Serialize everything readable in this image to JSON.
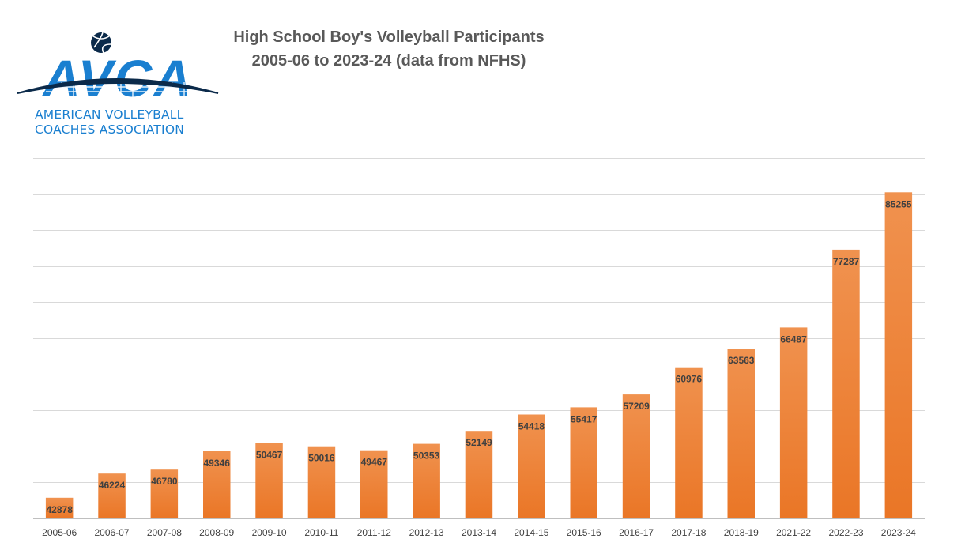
{
  "logo": {
    "wordmark": "AVCA",
    "name_line1": "AMERICAN VOLLEYBALL",
    "name_line2": "COACHES ASSOCIATION",
    "brand_color": "#1a7fd0",
    "dark_color": "#0b2a4a"
  },
  "chart_data": {
    "type": "bar",
    "title": "High School Boy's Volleyball Participants",
    "subtitle": "2005-06 to 2023-24 (data from NFHS)",
    "xlabel": "",
    "ylabel": "",
    "categories": [
      "2005-06",
      "2006-07",
      "2007-08",
      "2008-09",
      "2009-10",
      "2010-11",
      "2011-12",
      "2012-13",
      "2013-14",
      "2014-15",
      "2015-16",
      "2016-17",
      "2017-18",
      "2018-19",
      "2021-22",
      "2022-23",
      "2023-24"
    ],
    "values": [
      42878,
      46224,
      46780,
      49346,
      50467,
      50016,
      49467,
      50353,
      52149,
      54418,
      55417,
      57209,
      60976,
      63563,
      66487,
      77287,
      85255
    ],
    "ylim": [
      40000,
      90000
    ],
    "grid": true,
    "bar_color_top": "#f0924f",
    "bar_color_bottom": "#ea7626"
  }
}
